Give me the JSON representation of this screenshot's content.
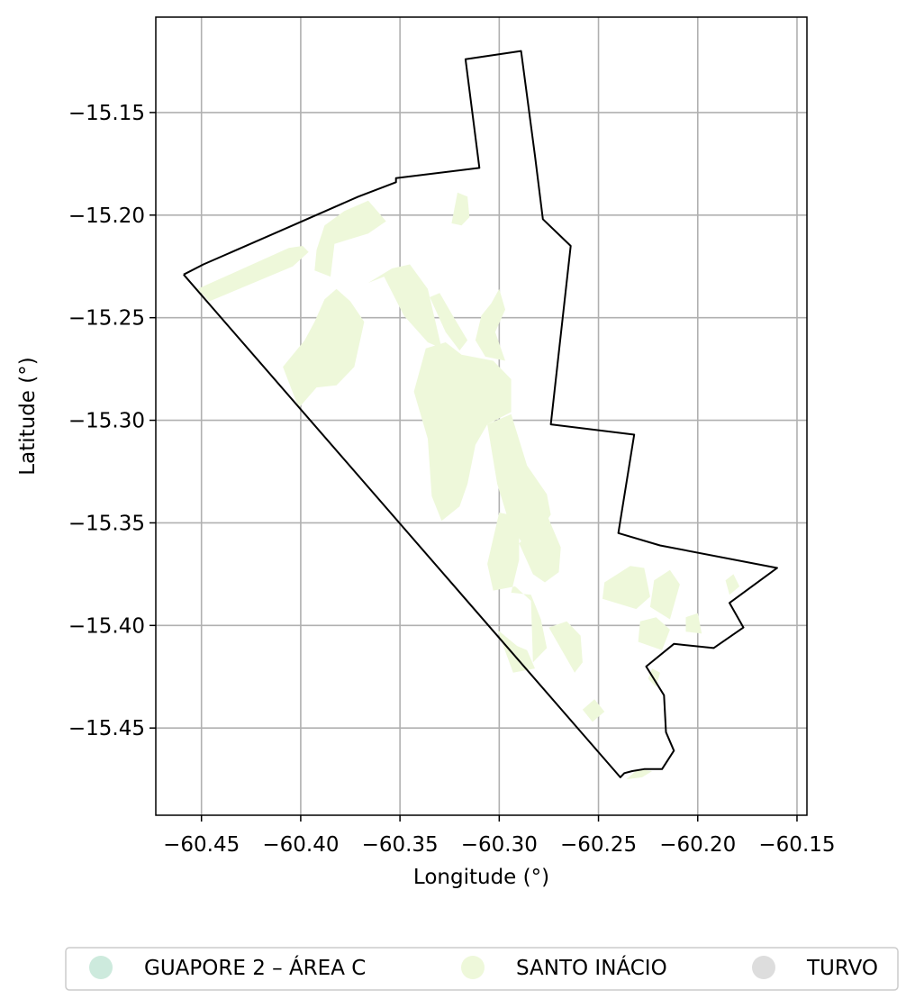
{
  "chart_data": {
    "type": "map",
    "xlabel": "Longitude (°)",
    "ylabel": "Latitude (°)",
    "xlim": [
      -60.473,
      -60.145
    ],
    "ylim": [
      -15.4925,
      -15.1035
    ],
    "grid": true,
    "xticks": [
      {
        "value": -60.45,
        "label": "−60.45"
      },
      {
        "value": -60.4,
        "label": "−60.40"
      },
      {
        "value": -60.35,
        "label": "−60.35"
      },
      {
        "value": -60.3,
        "label": "−60.30"
      },
      {
        "value": -60.25,
        "label": "−60.25"
      },
      {
        "value": -60.2,
        "label": "−60.20"
      },
      {
        "value": -60.15,
        "label": "−60.15"
      }
    ],
    "yticks": [
      {
        "value": -15.15,
        "label": "−15.15"
      },
      {
        "value": -15.2,
        "label": "−15.20"
      },
      {
        "value": -15.25,
        "label": "−15.25"
      },
      {
        "value": -15.3,
        "label": "−15.30"
      },
      {
        "value": -15.35,
        "label": "−15.35"
      },
      {
        "value": -15.4,
        "label": "−15.40"
      },
      {
        "value": -15.45,
        "label": "−15.45"
      }
    ],
    "boundary": [
      [
        -60.459,
        -15.229
      ],
      [
        -60.449,
        -15.224
      ],
      [
        -60.404,
        -15.205
      ],
      [
        -60.371,
        -15.191
      ],
      [
        -60.352,
        -15.184
      ],
      [
        -60.352,
        -15.182
      ],
      [
        -60.31,
        -15.177
      ],
      [
        -60.317,
        -15.124
      ],
      [
        -60.289,
        -15.12
      ],
      [
        -60.282,
        -15.171
      ],
      [
        -60.278,
        -15.202
      ],
      [
        -60.264,
        -15.215
      ],
      [
        -60.274,
        -15.302
      ],
      [
        -60.232,
        -15.307
      ],
      [
        -60.24,
        -15.355
      ],
      [
        -60.219,
        -15.361
      ],
      [
        -60.16,
        -15.372
      ],
      [
        -60.184,
        -15.389
      ],
      [
        -60.177,
        -15.401
      ],
      [
        -60.192,
        -15.411
      ],
      [
        -60.212,
        -15.409
      ],
      [
        -60.226,
        -15.42
      ],
      [
        -60.217,
        -15.434
      ],
      [
        -60.216,
        -15.452
      ],
      [
        -60.212,
        -15.461
      ],
      [
        -60.218,
        -15.47
      ],
      [
        -60.227,
        -15.47
      ],
      [
        -60.233,
        -15.471
      ],
      [
        -60.237,
        -15.472
      ],
      [
        -60.239,
        -15.474
      ],
      [
        -60.459,
        -15.229
      ]
    ],
    "categories": [
      {
        "name": "GUAPORE 2 – ÁREA C",
        "color": "#cdeadd"
      },
      {
        "name": "SANTO INÁCIO",
        "color": "#eef8da"
      },
      {
        "name": "TURVO",
        "color": "#dddddd"
      }
    ],
    "regions": [
      {
        "category": "SANTO INÁCIO",
        "polygon": [
          [
            -60.452,
            -15.236
          ],
          [
            -60.406,
            -15.216
          ],
          [
            -60.399,
            -15.215
          ],
          [
            -60.396,
            -15.218
          ],
          [
            -60.404,
            -15.225
          ],
          [
            -60.446,
            -15.242
          ]
        ]
      },
      {
        "category": "SANTO INÁCIO",
        "polygon": [
          [
            -60.392,
            -15.217
          ],
          [
            -60.388,
            -15.205
          ],
          [
            -60.378,
            -15.198
          ],
          [
            -60.366,
            -15.193
          ],
          [
            -60.357,
            -15.203
          ],
          [
            -60.366,
            -15.209
          ],
          [
            -60.383,
            -15.214
          ],
          [
            -60.385,
            -15.23
          ],
          [
            -60.393,
            -15.227
          ]
        ]
      },
      {
        "category": "SANTO INÁCIO",
        "polygon": [
          [
            -60.409,
            -15.274
          ],
          [
            -60.401,
            -15.294
          ],
          [
            -60.392,
            -15.284
          ],
          [
            -60.382,
            -15.283
          ],
          [
            -60.373,
            -15.274
          ],
          [
            -60.368,
            -15.252
          ],
          [
            -60.375,
            -15.242
          ],
          [
            -60.382,
            -15.236
          ],
          [
            -60.388,
            -15.241
          ],
          [
            -60.393,
            -15.252
          ],
          [
            -60.398,
            -15.261
          ]
        ]
      },
      {
        "category": "SANTO INÁCIO",
        "polygon": [
          [
            -60.366,
            -15.233
          ],
          [
            -60.358,
            -15.23
          ],
          [
            -60.348,
            -15.249
          ],
          [
            -60.336,
            -15.262
          ],
          [
            -60.329,
            -15.265
          ],
          [
            -60.336,
            -15.236
          ],
          [
            -60.345,
            -15.224
          ],
          [
            -60.354,
            -15.226
          ]
        ]
      },
      {
        "category": "SANTO INÁCIO",
        "polygon": [
          [
            -60.337,
            -15.265
          ],
          [
            -60.343,
            -15.286
          ],
          [
            -60.336,
            -15.309
          ],
          [
            -60.334,
            -15.337
          ],
          [
            -60.329,
            -15.349
          ],
          [
            -60.32,
            -15.342
          ],
          [
            -60.316,
            -15.331
          ],
          [
            -60.312,
            -15.312
          ],
          [
            -60.306,
            -15.302
          ],
          [
            -60.294,
            -15.296
          ],
          [
            -60.294,
            -15.28
          ],
          [
            -60.303,
            -15.271
          ],
          [
            -60.319,
            -15.268
          ],
          [
            -60.327,
            -15.262
          ]
        ]
      },
      {
        "category": "SANTO INÁCIO",
        "polygon": [
          [
            -60.302,
            -15.257
          ],
          [
            -60.297,
            -15.271
          ],
          [
            -60.307,
            -15.269
          ],
          [
            -60.312,
            -15.261
          ],
          [
            -60.309,
            -15.249
          ],
          [
            -60.304,
            -15.243
          ],
          [
            -60.3,
            -15.236
          ],
          [
            -60.297,
            -15.246
          ]
        ]
      },
      {
        "category": "SANTO INÁCIO",
        "polygon": [
          [
            -60.324,
            -15.204
          ],
          [
            -60.319,
            -15.205
          ],
          [
            -60.315,
            -15.201
          ],
          [
            -60.316,
            -15.191
          ],
          [
            -60.321,
            -15.189
          ]
        ]
      },
      {
        "category": "SANTO INÁCIO",
        "polygon": [
          [
            -60.316,
            -15.261
          ],
          [
            -60.324,
            -15.248
          ],
          [
            -60.33,
            -15.238
          ],
          [
            -60.335,
            -15.24
          ],
          [
            -60.327,
            -15.257
          ],
          [
            -60.32,
            -15.266
          ]
        ]
      },
      {
        "category": "SANTO INÁCIO",
        "polygon": [
          [
            -60.295,
            -15.35
          ],
          [
            -60.301,
            -15.331
          ],
          [
            -60.306,
            -15.302
          ],
          [
            -60.294,
            -15.297
          ],
          [
            -60.286,
            -15.322
          ],
          [
            -60.276,
            -15.336
          ],
          [
            -60.274,
            -15.346
          ],
          [
            -60.281,
            -15.356
          ],
          [
            -60.289,
            -15.359
          ]
        ]
      },
      {
        "category": "SANTO INÁCIO",
        "polygon": [
          [
            -60.3,
            -15.345
          ],
          [
            -60.29,
            -15.347
          ],
          [
            -60.29,
            -15.368
          ],
          [
            -60.294,
            -15.384
          ],
          [
            -60.284,
            -15.385
          ],
          [
            -60.279,
            -15.397
          ],
          [
            -60.276,
            -15.411
          ],
          [
            -60.283,
            -15.418
          ],
          [
            -60.284,
            -15.388
          ],
          [
            -60.292,
            -15.381
          ],
          [
            -60.303,
            -15.383
          ],
          [
            -60.306,
            -15.37
          ]
        ]
      },
      {
        "category": "SANTO INÁCIO",
        "polygon": [
          [
            -60.29,
            -15.36
          ],
          [
            -60.276,
            -15.346
          ],
          [
            -60.269,
            -15.362
          ],
          [
            -60.27,
            -15.374
          ],
          [
            -60.277,
            -15.379
          ],
          [
            -60.283,
            -15.375
          ]
        ]
      },
      {
        "category": "SANTO INÁCIO",
        "polygon": [
          [
            -60.291,
            -15.41
          ],
          [
            -60.301,
            -15.402
          ],
          [
            -60.293,
            -15.423
          ],
          [
            -60.282,
            -15.421
          ],
          [
            -60.286,
            -15.412
          ]
        ]
      },
      {
        "category": "SANTO INÁCIO",
        "polygon": [
          [
            -60.275,
            -15.401
          ],
          [
            -60.262,
            -15.423
          ],
          [
            -60.258,
            -15.418
          ],
          [
            -60.259,
            -15.405
          ],
          [
            -60.266,
            -15.398
          ]
        ]
      },
      {
        "category": "SANTO INÁCIO",
        "polygon": [
          [
            -60.258,
            -15.441
          ],
          [
            -60.253,
            -15.447
          ],
          [
            -60.247,
            -15.442
          ],
          [
            -60.252,
            -15.436
          ]
        ]
      },
      {
        "category": "SANTO INÁCIO",
        "polygon": [
          [
            -60.248,
            -15.387
          ],
          [
            -60.231,
            -15.392
          ],
          [
            -60.224,
            -15.386
          ],
          [
            -60.227,
            -15.372
          ],
          [
            -60.234,
            -15.371
          ],
          [
            -60.247,
            -15.379
          ]
        ]
      },
      {
        "category": "SANTO INÁCIO",
        "polygon": [
          [
            -60.23,
            -15.408
          ],
          [
            -60.218,
            -15.412
          ],
          [
            -60.214,
            -15.402
          ],
          [
            -60.221,
            -15.396
          ],
          [
            -60.229,
            -15.398
          ]
        ]
      },
      {
        "category": "SANTO INÁCIO",
        "polygon": [
          [
            -60.224,
            -15.391
          ],
          [
            -60.214,
            -15.397
          ],
          [
            -60.209,
            -15.38
          ],
          [
            -60.214,
            -15.373
          ],
          [
            -60.222,
            -15.378
          ]
        ]
      },
      {
        "category": "SANTO INÁCIO",
        "polygon": [
          [
            -60.206,
            -15.403
          ],
          [
            -60.198,
            -15.404
          ],
          [
            -60.2,
            -15.394
          ],
          [
            -60.206,
            -15.396
          ]
        ]
      },
      {
        "category": "SANTO INÁCIO",
        "polygon": [
          [
            -60.184,
            -15.385
          ],
          [
            -60.179,
            -15.381
          ],
          [
            -60.182,
            -15.375
          ],
          [
            -60.186,
            -15.378
          ]
        ]
      },
      {
        "category": "SANTO INÁCIO",
        "polygon": [
          [
            -60.225,
            -15.426
          ],
          [
            -60.221,
            -15.43
          ],
          [
            -60.219,
            -15.423
          ],
          [
            -60.223,
            -15.421
          ]
        ]
      },
      {
        "category": "SANTO INÁCIO",
        "polygon": [
          [
            -60.236,
            -15.475
          ],
          [
            -60.23,
            -15.47
          ],
          [
            -60.223,
            -15.471
          ],
          [
            -60.228,
            -15.474
          ]
        ]
      }
    ]
  }
}
